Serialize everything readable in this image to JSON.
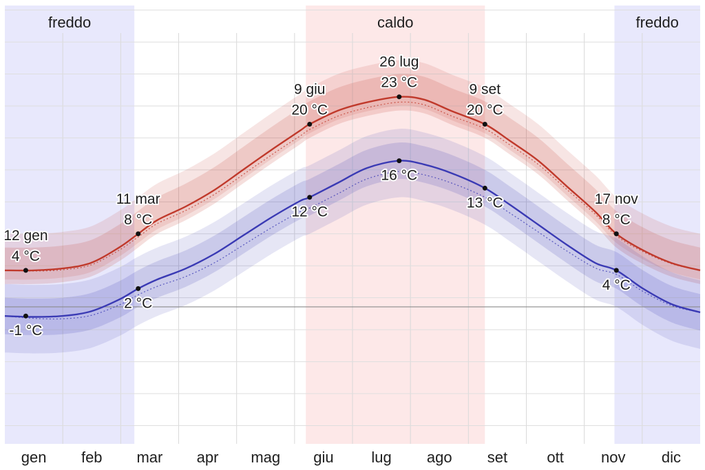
{
  "chart_data": {
    "type": "area",
    "title": "",
    "xlabel": "",
    "ylabel": "",
    "xlim": [
      0,
      365
    ],
    "ylim": [
      -15,
      33
    ],
    "zero_line": 0,
    "grid": true,
    "months": [
      "gen",
      "feb",
      "mar",
      "apr",
      "mag",
      "giu",
      "lug",
      "ago",
      "set",
      "ott",
      "nov",
      "dic"
    ],
    "seasons": [
      {
        "name": "freddo",
        "start": 0,
        "end": 68,
        "color": "#e8e8fc"
      },
      {
        "name": "caldo",
        "start": 158,
        "end": 252,
        "color": "#fde8e8"
      },
      {
        "name": "freddo",
        "start": 320,
        "end": 365,
        "color": "#e8e8fc"
      }
    ],
    "x": [
      0,
      15,
      30,
      45,
      60,
      70,
      80,
      95,
      110,
      125,
      140,
      155,
      160,
      175,
      190,
      207,
      220,
      235,
      252,
      265,
      280,
      295,
      310,
      321,
      335,
      350,
      365
    ],
    "series": [
      {
        "name": "max",
        "color": "#c0392b",
        "values": [
          4,
          4,
          4.2,
          4.8,
          6.5,
          8,
          9.5,
          11,
          12.8,
          15,
          17.2,
          19.3,
          20,
          21.5,
          22.4,
          23,
          22.7,
          21.4,
          20,
          18.2,
          16,
          13.2,
          10.4,
          8,
          6.2,
          4.8,
          4
        ],
        "p10_p90": [
          -1,
          4
        ],
        "p25_p75": [
          -1.5,
          2.5
        ],
        "normals_line": "dotted"
      },
      {
        "name": "min",
        "color": "#3a3ab4",
        "values": [
          -1,
          -1.1,
          -1,
          -0.5,
          0.8,
          2,
          3,
          4.2,
          5.8,
          7.8,
          9.8,
          11.6,
          12,
          13.6,
          15.2,
          16,
          15.6,
          14.6,
          13,
          11.2,
          9,
          6.8,
          4.8,
          4,
          2,
          0.3,
          -0.6
        ],
        "p10_p90": [
          -4,
          3.5
        ],
        "p25_p75": [
          -2,
          2
        ],
        "normals_line": "dotted"
      }
    ],
    "annotations": [
      {
        "date": "12 gen",
        "value_label": "4 °C",
        "x": 11,
        "y": 4,
        "series": "max",
        "pos": "above"
      },
      {
        "value_label": "-1 °C",
        "x": 11,
        "y": -1,
        "series": "min",
        "pos": "below"
      },
      {
        "date": "11 mar",
        "value_label": "8 °C",
        "x": 70,
        "y": 8,
        "series": "max",
        "pos": "above"
      },
      {
        "value_label": "2 °C",
        "x": 70,
        "y": 2,
        "series": "min",
        "pos": "below"
      },
      {
        "date": "9 giu",
        "value_label": "20 °C",
        "x": 160,
        "y": 20,
        "series": "max",
        "pos": "above"
      },
      {
        "value_label": "12 °C",
        "x": 160,
        "y": 12,
        "series": "min",
        "pos": "below"
      },
      {
        "date": "26 lug",
        "value_label": "23 °C",
        "x": 207,
        "y": 23,
        "series": "max",
        "pos": "above"
      },
      {
        "value_label": "16 °C",
        "x": 207,
        "y": 16,
        "series": "min",
        "pos": "below"
      },
      {
        "date": "9 set",
        "value_label": "20 °C",
        "x": 252,
        "y": 20,
        "series": "max",
        "pos": "above"
      },
      {
        "value_label": "13 °C",
        "x": 252,
        "y": 13,
        "series": "min",
        "pos": "below"
      },
      {
        "date": "17 nov",
        "value_label": "8 °C",
        "x": 321,
        "y": 8,
        "series": "max",
        "pos": "above"
      },
      {
        "value_label": "4 °C",
        "x": 321,
        "y": 4,
        "series": "min",
        "pos": "below"
      }
    ]
  }
}
